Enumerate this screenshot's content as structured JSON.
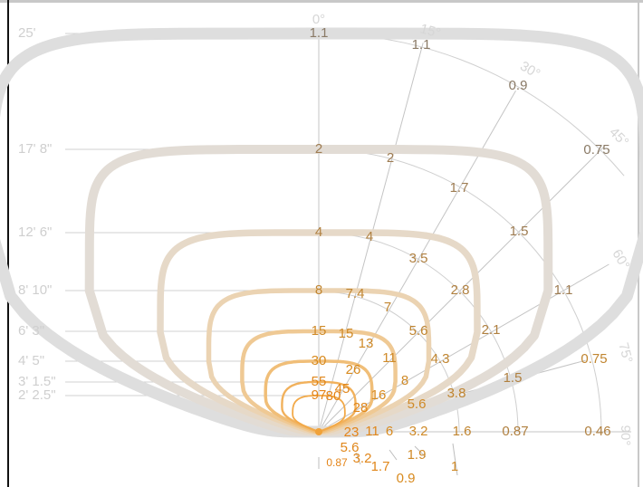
{
  "chart_data": {
    "type": "polar-candela",
    "rings": [
      {
        "height": "25'",
        "value": "1.1",
        "mid_labels": [
          "1.1",
          "0.9",
          "0.75"
        ]
      },
      {
        "height": "17' 8\"",
        "value": "2",
        "mid_labels": [
          "2",
          "1.7",
          "1.5",
          "1.1"
        ]
      },
      {
        "height": "12' 6\"",
        "value": "4",
        "mid_labels": [
          "4",
          "3.5",
          "2.8",
          "2.1",
          "1.5",
          "0.87",
          "0.46"
        ]
      },
      {
        "height": "8' 10\"",
        "value": "8",
        "mid_labels": [
          "7.4",
          "7",
          "5.6",
          "4.3",
          "3.8",
          "1.6",
          "0.75"
        ]
      },
      {
        "height": "6' 3\"",
        "value": "15",
        "mid_labels": [
          "15",
          "13",
          "11",
          "8",
          "5.6",
          "3.2",
          "1.9",
          "1"
        ]
      },
      {
        "height": "4' 5\"",
        "value": "30",
        "mid_labels": [
          "26",
          "16",
          "6",
          "0.9"
        ]
      },
      {
        "height": "3' 1.5\"",
        "value": "55",
        "mid_labels": [
          "45",
          "28",
          "11",
          "5.6",
          "3.2",
          "1.7"
        ]
      },
      {
        "height": "2' 2.5\"",
        "value": "97",
        "mid_labels": [
          "80",
          "23",
          "0.87"
        ]
      }
    ],
    "angle_labels": [
      "0°",
      "15°",
      "30°",
      "45°",
      "60°",
      "75°",
      "90°"
    ]
  }
}
